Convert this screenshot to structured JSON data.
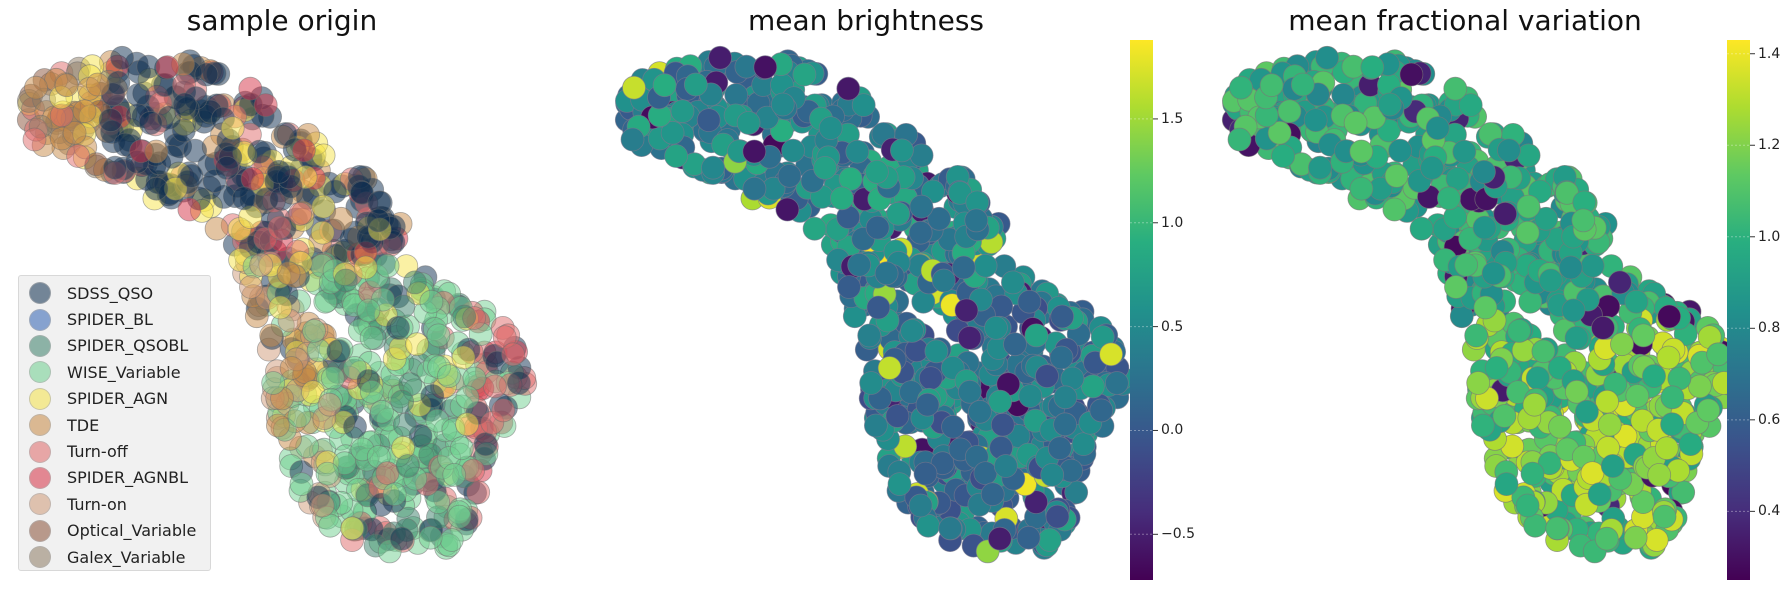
{
  "chart_data": [
    {
      "type": "scatter",
      "title": "sample origin",
      "legend": {
        "placement": "lower-left",
        "entries": [
          {
            "name": "SDSS_QSO",
            "color": "#0d2d4f"
          },
          {
            "name": "SPIDER_BL",
            "color": "#2f62b4"
          },
          {
            "name": "SPIDER_QSOBL",
            "color": "#3a7f6a"
          },
          {
            "name": "WISE_Variable",
            "color": "#6fcf8f"
          },
          {
            "name": "SPIDER_AGN",
            "color": "#f6e34a"
          },
          {
            "name": "TDE",
            "color": "#c88a45"
          },
          {
            "name": "Turn-off",
            "color": "#e06a6a"
          },
          {
            "name": "SPIDER_AGNBL",
            "color": "#d63245"
          },
          {
            "name": "Turn-on",
            "color": "#cf9a78"
          },
          {
            "name": "Optical_Variable",
            "color": "#8a5238"
          },
          {
            "name": "Galex_Variable",
            "color": "#8e7c64"
          }
        ]
      },
      "axes_visible": false
    },
    {
      "type": "scatter",
      "title": "mean brightness",
      "colormap": "viridis",
      "colorbar": {
        "range": [
          -0.72,
          1.88
        ],
        "ticks": [
          "1.5",
          "1.0",
          "0.5",
          "0.0",
          "−0.5"
        ],
        "tick_values": [
          1.5,
          1.0,
          0.5,
          0.0,
          -0.5
        ]
      },
      "axes_visible": false
    },
    {
      "type": "scatter",
      "title": "mean fractional variation",
      "colormap": "viridis",
      "colorbar": {
        "range": [
          0.25,
          1.43
        ],
        "ticks": [
          "1.4",
          "1.2",
          "1.0",
          "0.8",
          "0.6",
          "0.4"
        ],
        "tick_values": [
          1.4,
          1.2,
          1.0,
          0.8,
          0.6,
          0.4
        ]
      },
      "axes_visible": false
    }
  ]
}
